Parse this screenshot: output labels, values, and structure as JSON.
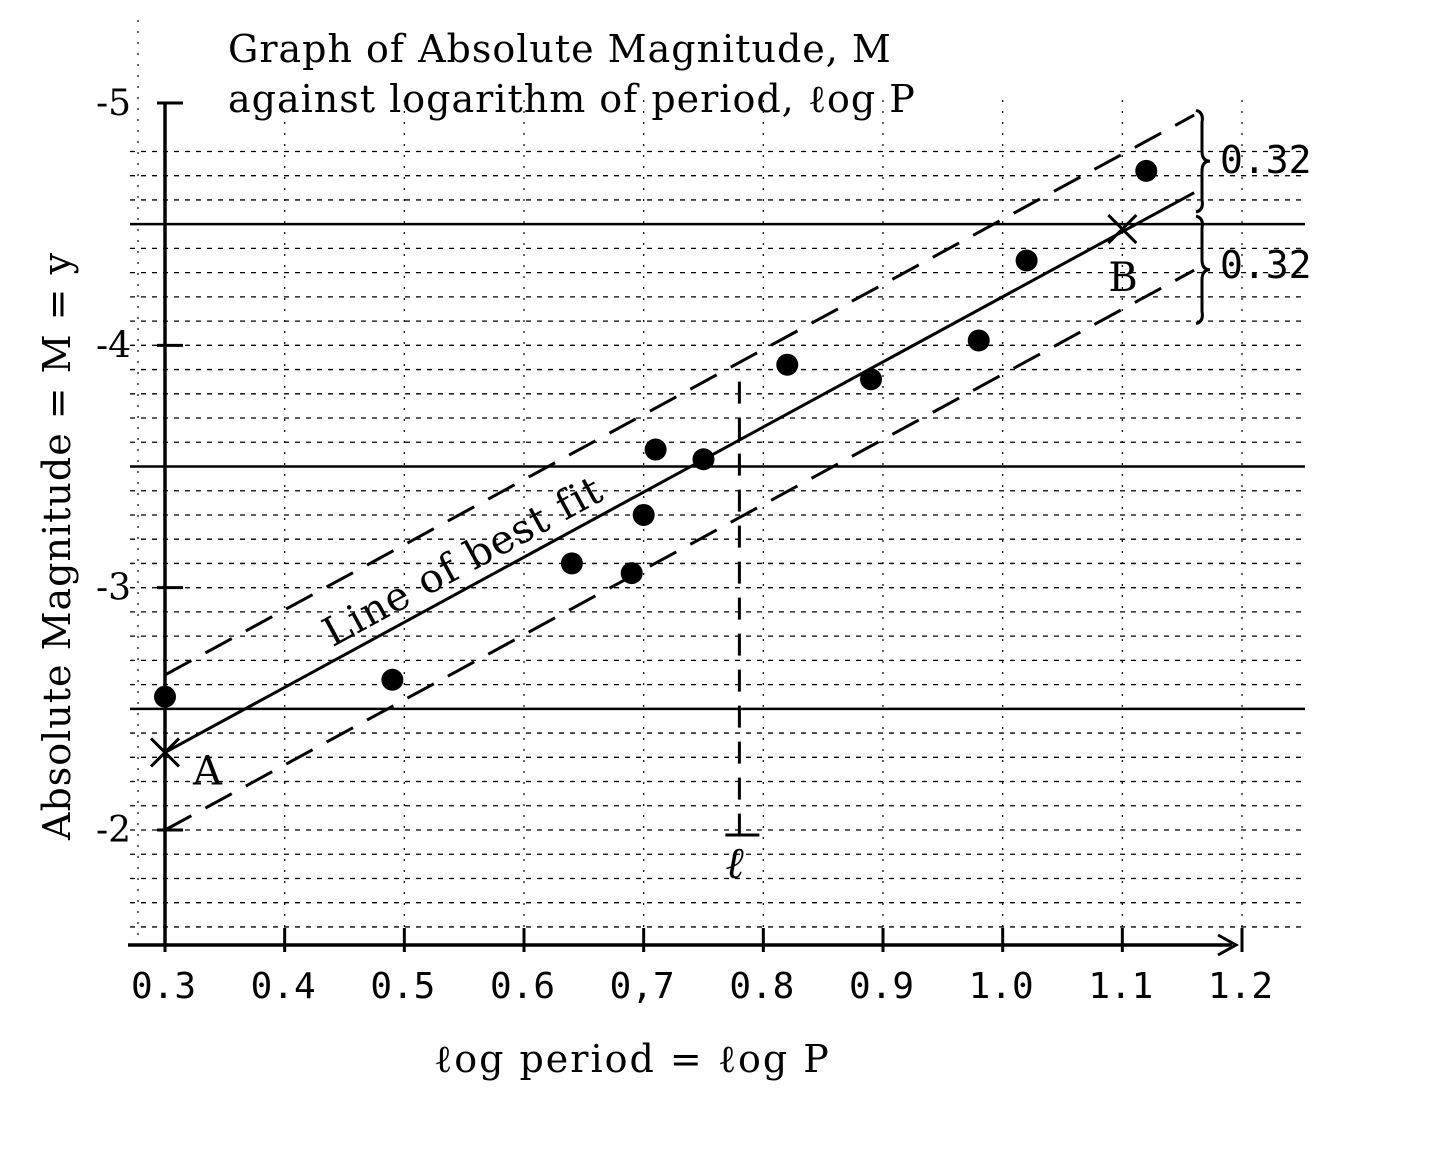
{
  "chart_data": {
    "type": "scatter",
    "title_line1": "Graph of Absolute Magnitude, M",
    "title_line2": "against logarithm of period, ℓog P",
    "xlabel": "ℓog period = ℓog P",
    "ylabel": "Absolute Magnitude = M = y",
    "xlim": [
      0.3,
      1.2
    ],
    "ylim": [
      -1.5,
      -5
    ],
    "x_ticks": [
      {
        "value": 0.3,
        "label": "0.3"
      },
      {
        "value": 0.4,
        "label": "0.4"
      },
      {
        "value": 0.5,
        "label": "0.5"
      },
      {
        "value": 0.6,
        "label": "0.6"
      },
      {
        "value": 0.7,
        "label": "0,7"
      },
      {
        "value": 0.8,
        "label": "0.8"
      },
      {
        "value": 0.9,
        "label": "0.9"
      },
      {
        "value": 1.0,
        "label": "1.0"
      },
      {
        "value": 1.1,
        "label": "1.1"
      },
      {
        "value": 1.2,
        "label": "1.2"
      }
    ],
    "y_ticks": [
      {
        "value": -2,
        "label": "-2"
      },
      {
        "value": -3,
        "label": "-3"
      },
      {
        "value": -4,
        "label": "-4"
      },
      {
        "value": -5,
        "label": "-5"
      }
    ],
    "grid": true,
    "series": [
      {
        "points": [
          {
            "x": 0.3,
            "y": -2.55
          },
          {
            "x": 0.49,
            "y": -2.62
          },
          {
            "x": 0.64,
            "y": -3.1
          },
          {
            "x": 0.69,
            "y": -3.06
          },
          {
            "x": 0.7,
            "y": -3.3
          },
          {
            "x": 0.71,
            "y": -3.57
          },
          {
            "x": 0.75,
            "y": -3.53
          },
          {
            "x": 0.82,
            "y": -3.92
          },
          {
            "x": 0.89,
            "y": -3.86
          },
          {
            "x": 0.98,
            "y": -4.02
          },
          {
            "x": 1.02,
            "y": -4.35
          },
          {
            "x": 1.12,
            "y": -4.72
          }
        ]
      }
    ],
    "best_fit": {
      "label": "Line of best fit",
      "from": {
        "x": 0.3,
        "y": -2.32
      },
      "to": {
        "x": 1.16,
        "y": -4.63
      },
      "band_offset": 0.32
    },
    "annotations": {
      "point_a": {
        "label": "A",
        "x": 0.3,
        "y": -2.32
      },
      "point_b": {
        "label": "B",
        "x": 1.1,
        "y": -4.48
      },
      "mean_line": {
        "label": "ℓ",
        "x": 0.78
      },
      "band_upper": "0.32",
      "band_lower": "0.32"
    }
  }
}
